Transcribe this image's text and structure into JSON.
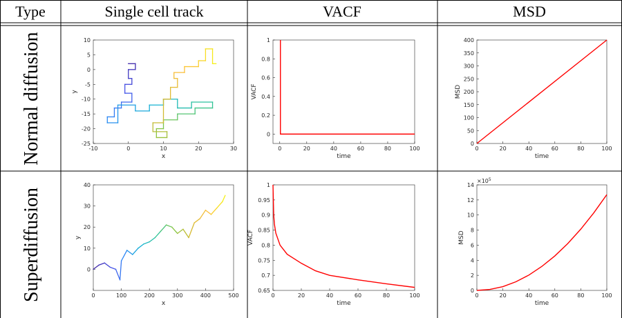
{
  "table": {
    "header": [
      "Type",
      "Single cell track",
      "VACF",
      "MSD"
    ],
    "row_labels": [
      "Normal diffusion",
      "Superdiffusion"
    ]
  },
  "chart_data": [
    {
      "type": "line",
      "xlabel": "x",
      "ylabel": "y",
      "x": [
        0,
        2,
        2,
        0,
        0,
        1,
        1,
        -1,
        -1,
        1,
        1,
        -2,
        -2,
        -4,
        -4,
        -6,
        -6,
        -3,
        -3,
        2,
        2,
        6,
        6,
        10,
        10,
        14,
        14,
        18,
        18,
        24,
        24,
        19,
        19,
        14,
        14,
        10,
        10,
        8,
        8,
        11,
        11,
        7,
        7,
        10,
        10,
        12,
        12,
        14,
        14,
        13,
        13,
        16,
        16,
        20,
        20,
        22,
        22,
        24,
        24,
        25
      ],
      "y": [
        2,
        2,
        0,
        0,
        -3,
        -3,
        -5,
        -5,
        -8,
        -8,
        -11,
        -11,
        -13,
        -13,
        -16,
        -16,
        -18,
        -18,
        -12,
        -12,
        -14,
        -14,
        -12,
        -12,
        -10,
        -10,
        -13,
        -13,
        -11,
        -11,
        -13,
        -13,
        -15,
        -15,
        -17,
        -17,
        -20,
        -20,
        -23,
        -23,
        -21,
        -21,
        -18,
        -18,
        -10,
        -10,
        -6,
        -6,
        -3,
        -3,
        -1,
        -1,
        1,
        1,
        3,
        3,
        7,
        7,
        2,
        2
      ],
      "colormap": [
        "#3e26a8",
        "#4653e8",
        "#2b86f5",
        "#13b1d4",
        "#2fc394",
        "#86c541",
        "#d7ba32",
        "#fcbf3b",
        "#f5f014"
      ],
      "xlim": [
        -10,
        30
      ],
      "xticks": [
        -10,
        0,
        10,
        20,
        30
      ],
      "ylim": [
        -25,
        10
      ],
      "yticks": [
        -25,
        -20,
        -15,
        -10,
        -5,
        0,
        5,
        10
      ]
    },
    {
      "type": "line",
      "xlabel": "time",
      "ylabel": "VACF",
      "x": [
        0.5,
        0.5,
        100
      ],
      "y": [
        1,
        0,
        0
      ],
      "color": "#ff0000",
      "xlim": [
        -5,
        100
      ],
      "xticks": [
        0,
        20,
        40,
        60,
        80,
        100
      ],
      "ylim": [
        -0.1,
        1
      ],
      "yticks": [
        0,
        0.2,
        0.4,
        0.6,
        0.8,
        1
      ]
    },
    {
      "type": "line",
      "xlabel": "time",
      "ylabel": "MSD",
      "x": [
        0,
        100
      ],
      "y": [
        0,
        400
      ],
      "color": "#ff0000",
      "xlim": [
        0,
        100
      ],
      "xticks": [
        0,
        20,
        40,
        60,
        80,
        100
      ],
      "ylim": [
        0,
        400
      ],
      "yticks": [
        0,
        50,
        100,
        150,
        200,
        250,
        300,
        350,
        400
      ]
    },
    {
      "type": "line",
      "xlabel": "x",
      "ylabel": "y",
      "x": [
        0,
        20,
        40,
        60,
        80,
        95,
        100,
        120,
        140,
        160,
        180,
        200,
        220,
        240,
        260,
        280,
        300,
        320,
        340,
        360,
        380,
        400,
        420,
        440,
        460,
        470
      ],
      "y": [
        0,
        2,
        3,
        1,
        0,
        -5,
        4,
        9,
        7,
        10,
        12,
        13,
        15,
        18,
        21,
        20,
        17,
        19,
        15,
        22,
        24,
        28,
        26,
        29,
        32,
        35
      ],
      "colormap": [
        "#3e26a8",
        "#4653e8",
        "#2b86f5",
        "#13b1d4",
        "#2fc394",
        "#86c541",
        "#d7ba32",
        "#fcbf3b",
        "#f5f014"
      ],
      "xlim": [
        0,
        500
      ],
      "xticks": [
        0,
        100,
        200,
        300,
        400,
        500
      ],
      "ylim": [
        -10,
        40
      ],
      "yticks": [
        0,
        10,
        20,
        30,
        40
      ]
    },
    {
      "type": "line",
      "xlabel": "time",
      "ylabel": "VACF",
      "x": [
        0,
        0.5,
        1,
        2,
        5,
        10,
        20,
        30,
        40,
        60,
        80,
        100
      ],
      "y": [
        1,
        0.9,
        0.87,
        0.84,
        0.8,
        0.77,
        0.74,
        0.715,
        0.7,
        0.685,
        0.672,
        0.66
      ],
      "color": "#ff0000",
      "xlim": [
        0,
        100
      ],
      "xticks": [
        0,
        20,
        40,
        60,
        80,
        100
      ],
      "ylim": [
        0.65,
        1
      ],
      "yticks": [
        0.65,
        0.7,
        0.75,
        0.8,
        0.85,
        0.9,
        0.95,
        1
      ]
    },
    {
      "type": "line",
      "xlabel": "time",
      "ylabel": "MSD",
      "x": [
        0,
        10,
        20,
        30,
        40,
        50,
        60,
        70,
        80,
        90,
        100
      ],
      "y": [
        0,
        0.13,
        0.5,
        1.14,
        2.03,
        3.18,
        4.57,
        6.22,
        8.13,
        10.29,
        12.7
      ],
      "color": "#ff0000",
      "yscale_label": {
        "base": "×10",
        "exponent": "5"
      },
      "xlim": [
        0,
        100
      ],
      "xticks": [
        0,
        20,
        40,
        60,
        80,
        100
      ],
      "ylim": [
        0,
        14
      ],
      "yticks": [
        0,
        2,
        4,
        6,
        8,
        10,
        12,
        14
      ]
    }
  ]
}
